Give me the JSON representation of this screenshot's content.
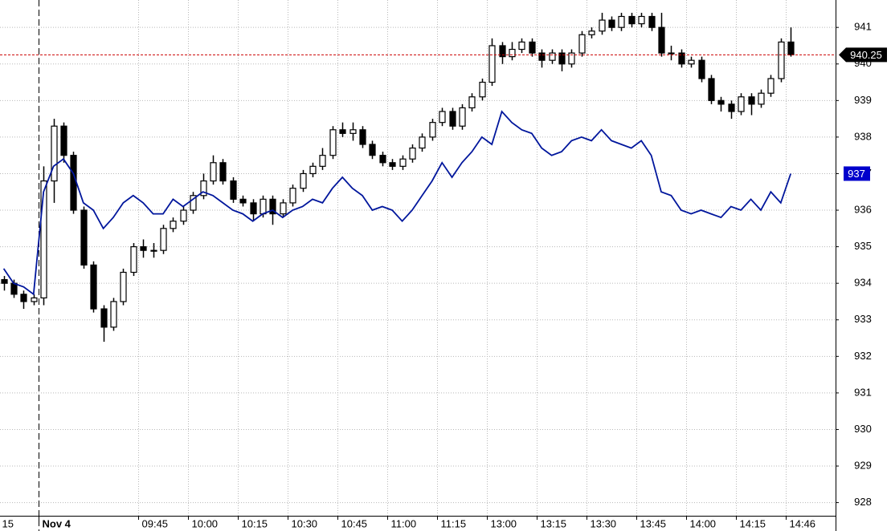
{
  "chart_data": {
    "type": "candlestick",
    "categories": [
      "15",
      null,
      null,
      null,
      "Nov 4",
      null,
      null,
      null,
      null,
      null,
      null,
      null,
      null,
      null,
      "09:45",
      null,
      null,
      null,
      null,
      "10:00",
      null,
      null,
      null,
      null,
      "10:15",
      null,
      null,
      null,
      null,
      "10:30",
      null,
      null,
      null,
      null,
      "10:45",
      null,
      null,
      null,
      null,
      "11:00",
      null,
      null,
      null,
      null,
      "11:15",
      null,
      null,
      null,
      null,
      "13:00",
      null,
      null,
      null,
      null,
      "13:15",
      null,
      null,
      null,
      null,
      "13:30",
      null,
      null,
      null,
      null,
      "13:45",
      null,
      null,
      null,
      null,
      "14:00",
      null,
      null,
      null,
      null,
      "14:15",
      null,
      null,
      null,
      null,
      "14:46"
    ],
    "series": [
      {
        "type": "candlestick",
        "color": "#000000",
        "open": [
          934.1,
          934.0,
          933.7,
          933.5,
          933.6,
          936.8,
          938.3,
          937.5,
          936.0,
          934.5,
          933.3,
          932.8,
          933.5,
          934.3,
          935.0,
          934.9,
          934.9,
          935.5,
          935.7,
          936.0,
          936.4,
          936.8,
          937.3,
          936.8,
          936.3,
          936.2,
          935.9,
          936.3,
          935.9,
          936.2,
          936.6,
          937.0,
          937.2,
          937.5,
          938.2,
          938.1,
          938.2,
          937.8,
          937.5,
          937.3,
          937.2,
          937.4,
          937.7,
          938.0,
          938.4,
          938.7,
          938.3,
          938.8,
          939.1,
          939.5,
          940.5,
          940.2,
          940.4,
          940.6,
          940.3,
          940.1,
          940.3,
          940.0,
          940.3,
          940.8,
          940.9,
          941.2,
          941.0,
          941.3,
          941.1,
          941.3,
          941.0,
          940.3,
          940.3,
          940.0,
          940.1,
          939.6,
          939.0,
          938.9,
          938.7,
          939.1,
          938.9,
          939.2,
          939.6,
          940.6
        ],
        "high": [
          934.2,
          934.1,
          933.8,
          933.7,
          937.2,
          938.5,
          938.4,
          937.6,
          936.1,
          934.6,
          933.4,
          933.6,
          934.4,
          935.1,
          935.2,
          935.1,
          935.6,
          935.8,
          936.1,
          936.5,
          937.0,
          937.5,
          937.4,
          936.9,
          936.4,
          936.3,
          936.4,
          936.4,
          936.3,
          936.7,
          937.1,
          937.3,
          937.7,
          938.3,
          938.4,
          938.4,
          938.3,
          937.9,
          937.6,
          937.4,
          937.5,
          937.8,
          938.1,
          938.5,
          938.8,
          938.8,
          938.9,
          939.2,
          939.6,
          940.7,
          940.6,
          940.6,
          940.7,
          940.7,
          940.4,
          940.4,
          940.4,
          940.4,
          940.9,
          941.0,
          941.4,
          941.3,
          941.4,
          941.4,
          941.4,
          941.4,
          941.4,
          940.5,
          940.4,
          940.2,
          940.2,
          939.7,
          939.1,
          939.0,
          939.2,
          939.2,
          939.3,
          939.7,
          940.7,
          941.0
        ],
        "low": [
          933.8,
          933.6,
          933.3,
          933.4,
          933.4,
          936.2,
          937.3,
          935.9,
          934.4,
          933.2,
          932.4,
          932.7,
          933.4,
          934.2,
          934.7,
          934.7,
          934.8,
          935.4,
          935.6,
          935.9,
          936.3,
          936.7,
          936.7,
          936.2,
          936.1,
          935.7,
          935.8,
          935.6,
          935.8,
          936.1,
          936.5,
          936.9,
          937.1,
          937.4,
          938.0,
          937.9,
          937.7,
          937.4,
          937.2,
          937.1,
          937.1,
          937.3,
          937.6,
          937.9,
          938.3,
          938.2,
          938.2,
          938.7,
          939.0,
          939.4,
          940.0,
          940.1,
          940.3,
          940.2,
          939.9,
          940.0,
          939.8,
          939.9,
          940.2,
          940.7,
          940.8,
          940.9,
          940.9,
          941.0,
          941.0,
          940.9,
          940.2,
          940.1,
          939.9,
          939.9,
          939.5,
          938.9,
          938.7,
          938.5,
          938.6,
          938.6,
          938.8,
          939.1,
          939.5,
          940.2
        ],
        "close": [
          934.0,
          933.7,
          933.5,
          933.6,
          936.8,
          938.3,
          937.5,
          936.0,
          934.5,
          933.3,
          932.8,
          933.5,
          934.3,
          935.0,
          934.9,
          934.9,
          935.5,
          935.7,
          936.0,
          936.4,
          936.8,
          937.3,
          936.8,
          936.3,
          936.2,
          935.9,
          936.3,
          935.9,
          936.2,
          936.6,
          937.0,
          937.2,
          937.5,
          938.2,
          938.1,
          938.2,
          937.8,
          937.5,
          937.3,
          937.2,
          937.4,
          937.7,
          938.0,
          938.4,
          938.7,
          938.3,
          938.8,
          939.1,
          939.5,
          940.5,
          940.2,
          940.4,
          940.6,
          940.3,
          940.1,
          940.3,
          940.0,
          940.3,
          940.8,
          940.9,
          941.2,
          941.0,
          941.3,
          941.1,
          941.3,
          941.0,
          940.3,
          940.3,
          940.0,
          940.1,
          939.6,
          939.0,
          938.9,
          938.7,
          939.1,
          938.9,
          939.2,
          939.6,
          940.6,
          940.25
        ]
      },
      {
        "type": "line",
        "color": "#00169c",
        "values": [
          934.4,
          934.0,
          933.9,
          933.7,
          936.5,
          937.2,
          937.4,
          937.0,
          936.2,
          936.0,
          935.5,
          935.8,
          936.2,
          936.4,
          936.2,
          935.9,
          935.9,
          936.3,
          936.1,
          936.3,
          936.5,
          936.4,
          936.2,
          936.0,
          935.9,
          935.7,
          935.9,
          936.0,
          935.8,
          936.0,
          936.1,
          936.3,
          936.2,
          936.6,
          936.9,
          936.6,
          936.4,
          936.0,
          936.1,
          936.0,
          935.7,
          936.0,
          936.4,
          936.8,
          937.3,
          936.9,
          937.3,
          937.6,
          938.0,
          937.8,
          938.7,
          938.4,
          938.2,
          938.1,
          937.7,
          937.5,
          937.6,
          937.9,
          938.0,
          937.9,
          938.2,
          937.9,
          937.8,
          937.7,
          937.9,
          937.5,
          936.5,
          936.4,
          936.0,
          935.9,
          936.0,
          935.9,
          935.8,
          936.1,
          936.0,
          936.3,
          936.0,
          936.5,
          936.2,
          937.0
        ]
      }
    ],
    "annotations": [
      {
        "text": "940.25",
        "value": 940.25,
        "color": "#000000",
        "line_color": "#cc0000"
      },
      {
        "text": "937",
        "value": 937,
        "color": "#0000cc"
      }
    ],
    "ylim": [
      927.64,
      941.75
    ],
    "yticks": [
      928,
      929,
      930,
      931,
      932,
      933,
      934,
      935,
      936,
      937,
      938,
      939,
      940,
      941
    ],
    "grid": true
  }
}
